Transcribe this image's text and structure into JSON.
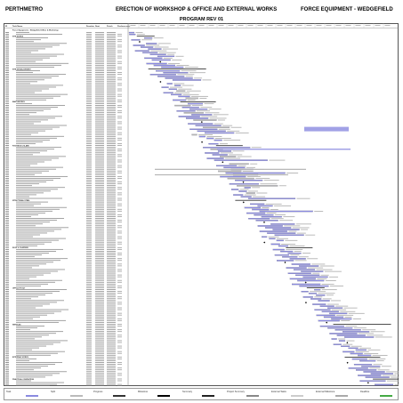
{
  "header": {
    "company": "PERTHMETRO",
    "project_title": "ERECTION OF WORKSHOP & OFFICE AND EXTERNAL WORKS",
    "client": "FORCE EQUIPMENT  - WEDGEFIELD",
    "revision": "PROGRAM REV 01"
  },
  "columns": [
    "ID",
    "Task Name",
    "Duration",
    "Start",
    "Finish",
    "Predecessors"
  ],
  "project_summary": "Force Equipment - Wedgefield Office & Workshop",
  "sections": [
    "SITE WORKS",
    "SITE ESTABLISHMENT",
    "EARTHWORKS",
    "FOOTINGS & SLABS",
    "STRUCTURAL STEEL",
    "ROOF & CLADDING",
    "OFFICE FITOUT",
    "SERVICES",
    "EXTERNAL WORKS",
    "PRACTICAL COMPLETION"
  ],
  "legend": {
    "items": [
      "Task",
      "Split",
      "Progress",
      "Milestone",
      "Summary",
      "Project Summary",
      "External Tasks",
      "External Milestone",
      "Deadline"
    ],
    "colors": {
      "task": "#8a8ae0",
      "summary": "#222222",
      "progress": "#333333",
      "milestone": "#000000"
    }
  }
}
